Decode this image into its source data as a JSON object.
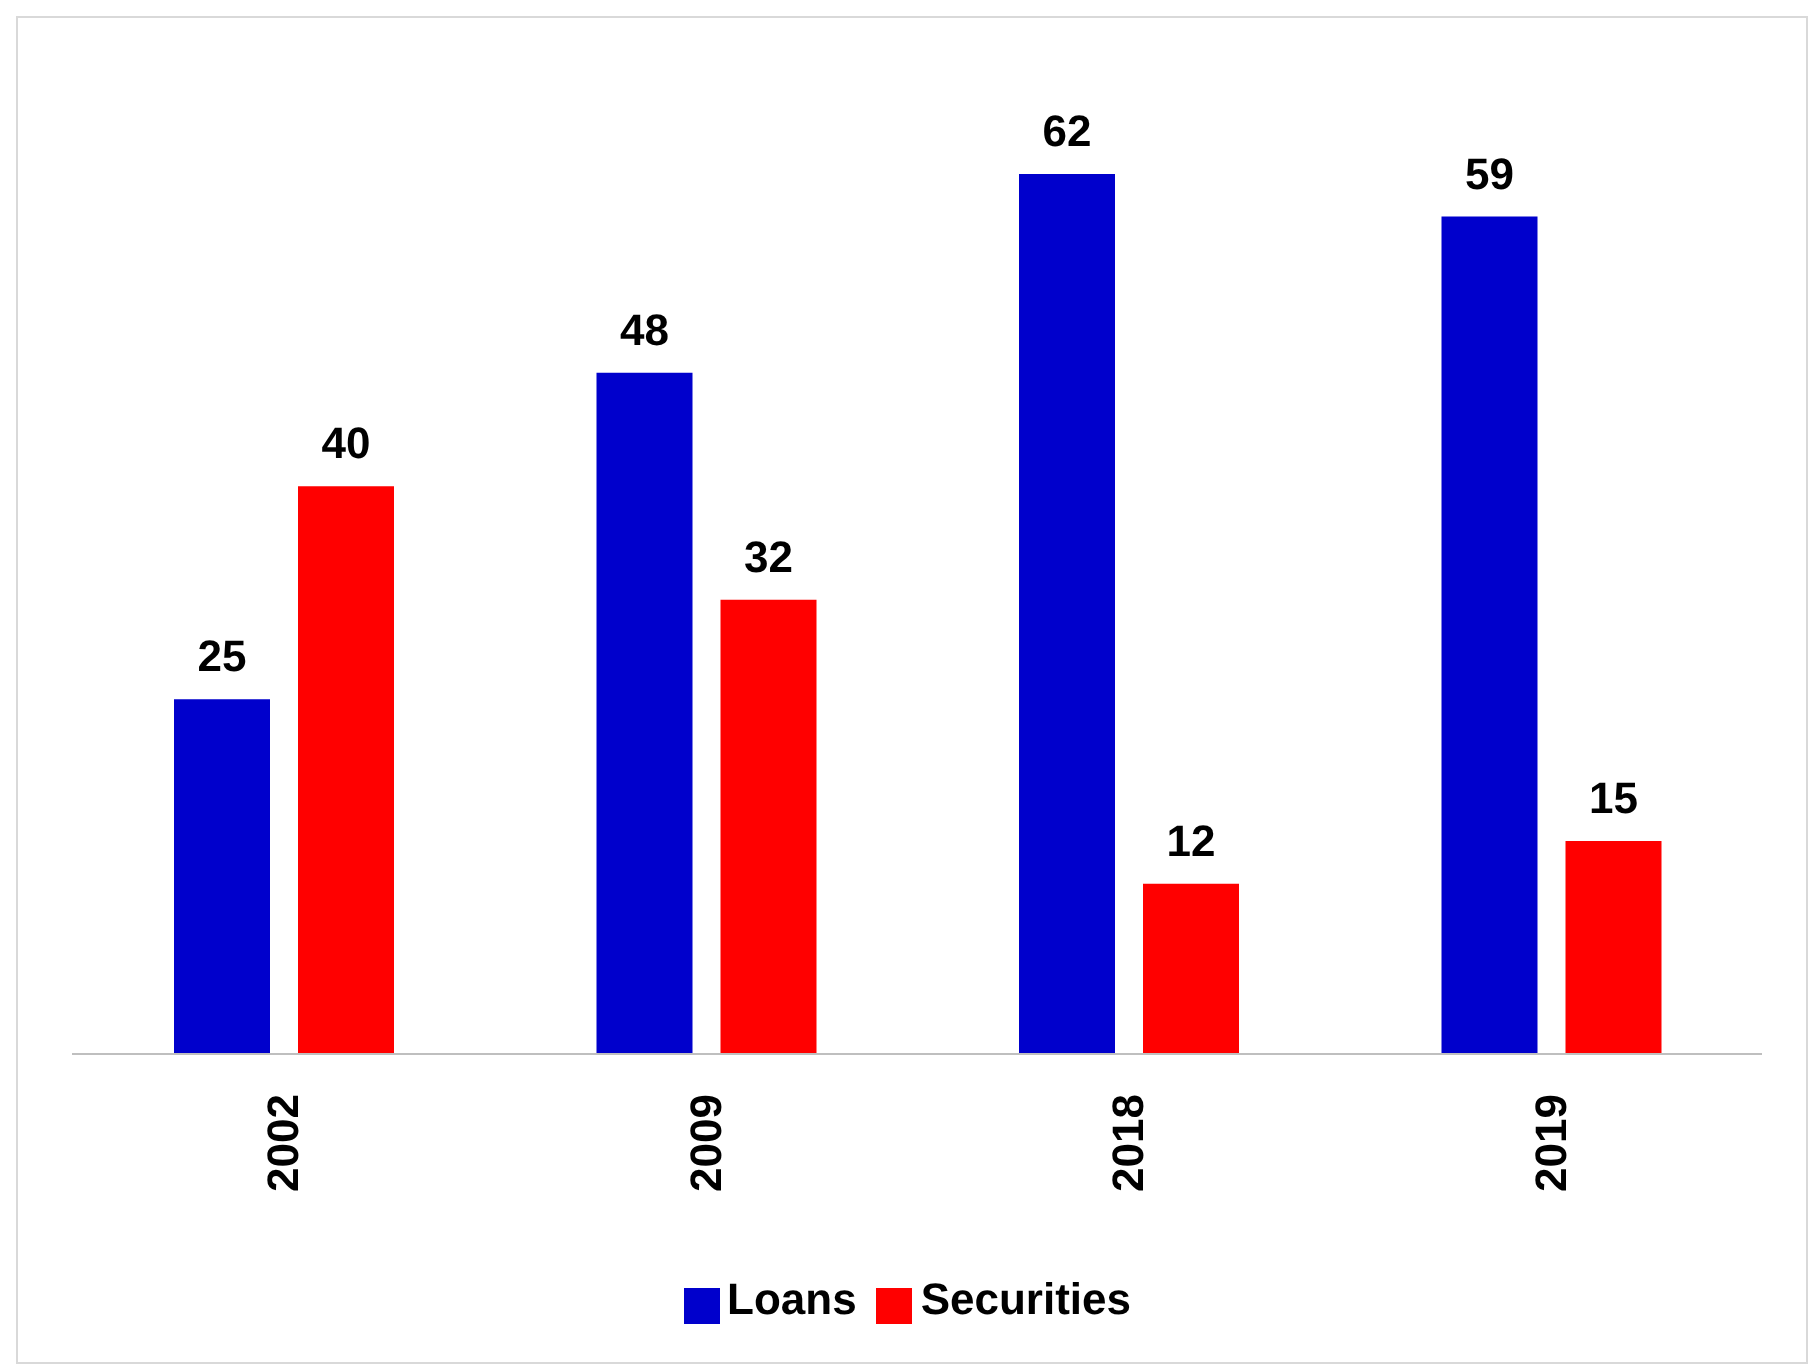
{
  "chart_data": {
    "type": "bar",
    "categories": [
      "2002",
      "2009",
      "2018",
      "2019"
    ],
    "series": [
      {
        "name": "Loans",
        "color": "#0000cc",
        "values": [
          25,
          48,
          62,
          59
        ]
      },
      {
        "name": "Securities",
        "color": "#ff0000",
        "values": [
          40,
          32,
          12,
          15
        ]
      }
    ],
    "data_labels": true,
    "legend": "bottom",
    "grid": false
  }
}
